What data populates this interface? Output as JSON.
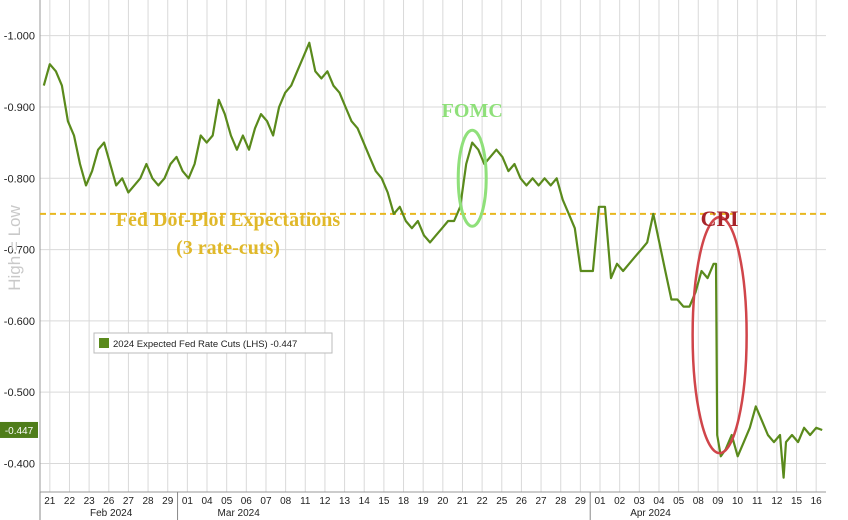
{
  "chart_data": {
    "type": "line",
    "title": "",
    "xlabel": "",
    "ylabel": "",
    "side_label": "High = Low",
    "ylim": [
      -0.36,
      -1.05
    ],
    "y_ticks": [
      "-1.000",
      "-0.900",
      "-0.800",
      "-0.700",
      "-0.600",
      "-0.500",
      "-0.400"
    ],
    "y_tick_values": [
      -1.0,
      -0.9,
      -0.8,
      -0.7,
      -0.6,
      -0.5,
      -0.4
    ],
    "x_ticks": [
      "21",
      "22",
      "23",
      "26",
      "27",
      "28",
      "29",
      "01",
      "04",
      "05",
      "06",
      "07",
      "08",
      "11",
      "12",
      "13",
      "14",
      "15",
      "18",
      "19",
      "20",
      "21",
      "22",
      "25",
      "26",
      "27",
      "28",
      "29",
      "01",
      "02",
      "03",
      "04",
      "05",
      "08",
      "09",
      "10",
      "11",
      "12",
      "15",
      "16"
    ],
    "months": [
      {
        "label": "Feb 2024",
        "tick_index": 0
      },
      {
        "label": "Mar 2024",
        "tick_index": 7
      },
      {
        "label": "Apr 2024",
        "tick_index": 28
      }
    ],
    "grid": true,
    "series": [
      {
        "name": "2024 Expected Fed Rate Cuts (LHS)",
        "last_value": "-0.447",
        "color": "#5a8a1c",
        "points": [
          [
            -0.5,
            -0.93
          ],
          [
            0,
            -0.96
          ],
          [
            0.5,
            -0.95
          ],
          [
            1,
            -0.93
          ],
          [
            1.5,
            -0.88
          ],
          [
            2,
            -0.86
          ],
          [
            2.5,
            -0.82
          ],
          [
            3,
            -0.79
          ],
          [
            3.5,
            -0.81
          ],
          [
            4,
            -0.84
          ],
          [
            4.5,
            -0.85
          ],
          [
            5,
            -0.82
          ],
          [
            5.5,
            -0.79
          ],
          [
            6,
            -0.8
          ],
          [
            6.5,
            -0.78
          ],
          [
            7,
            -0.79
          ],
          [
            7.5,
            -0.8
          ],
          [
            8,
            -0.82
          ],
          [
            8.5,
            -0.8
          ],
          [
            9,
            -0.79
          ],
          [
            9.5,
            -0.8
          ],
          [
            10,
            -0.82
          ],
          [
            10.5,
            -0.83
          ],
          [
            11,
            -0.81
          ],
          [
            11.5,
            -0.8
          ],
          [
            12,
            -0.82
          ],
          [
            12.5,
            -0.86
          ],
          [
            13,
            -0.85
          ],
          [
            13.5,
            -0.86
          ],
          [
            14,
            -0.91
          ],
          [
            14.5,
            -0.89
          ],
          [
            15,
            -0.86
          ],
          [
            15.5,
            -0.84
          ],
          [
            16,
            -0.86
          ],
          [
            16.5,
            -0.84
          ],
          [
            17,
            -0.87
          ],
          [
            17.5,
            -0.89
          ],
          [
            18,
            -0.88
          ],
          [
            18.5,
            -0.86
          ],
          [
            19,
            -0.9
          ],
          [
            19.5,
            -0.92
          ],
          [
            20,
            -0.93
          ],
          [
            20.5,
            -0.95
          ],
          [
            21,
            -0.97
          ],
          [
            21.5,
            -0.99
          ],
          [
            22,
            -0.95
          ],
          [
            22.5,
            -0.94
          ],
          [
            23,
            -0.95
          ],
          [
            23.5,
            -0.93
          ],
          [
            24,
            -0.92
          ],
          [
            24.5,
            -0.9
          ],
          [
            25,
            -0.88
          ],
          [
            25.5,
            -0.87
          ],
          [
            26,
            -0.85
          ],
          [
            26.5,
            -0.83
          ],
          [
            27,
            -0.81
          ],
          [
            27.5,
            -0.8
          ],
          [
            28,
            -0.78
          ],
          [
            28.5,
            -0.75
          ],
          [
            29,
            -0.76
          ],
          [
            29.5,
            -0.74
          ],
          [
            30,
            -0.73
          ],
          [
            30.5,
            -0.74
          ],
          [
            31,
            -0.72
          ],
          [
            31.5,
            -0.71
          ],
          [
            32,
            -0.72
          ],
          [
            32.5,
            -0.73
          ],
          [
            33,
            -0.74
          ],
          [
            33.5,
            -0.74
          ],
          [
            34,
            -0.76
          ],
          [
            34.5,
            -0.82
          ],
          [
            35,
            -0.85
          ],
          [
            35.5,
            -0.84
          ],
          [
            36,
            -0.82
          ],
          [
            36.5,
            -0.83
          ],
          [
            37,
            -0.84
          ],
          [
            37.5,
            -0.83
          ],
          [
            38,
            -0.81
          ],
          [
            38.5,
            -0.82
          ],
          [
            39,
            -0.8
          ],
          [
            39.5,
            -0.79
          ],
          [
            40,
            -0.8
          ],
          [
            40.5,
            -0.79
          ],
          [
            41,
            -0.8
          ],
          [
            41.5,
            -0.79
          ],
          [
            42,
            -0.8
          ],
          [
            42.5,
            -0.77
          ],
          [
            43,
            -0.75
          ],
          [
            43.5,
            -0.73
          ],
          [
            44,
            -0.67
          ],
          [
            44.5,
            -0.67
          ],
          [
            45,
            -0.67
          ],
          [
            45.5,
            -0.76
          ],
          [
            46,
            -0.76
          ],
          [
            46.5,
            -0.66
          ],
          [
            47,
            -0.68
          ],
          [
            47.5,
            -0.67
          ],
          [
            48,
            -0.68
          ],
          [
            48.5,
            -0.69
          ],
          [
            49,
            -0.7
          ],
          [
            49.5,
            -0.71
          ],
          [
            50,
            -0.75
          ],
          [
            50.5,
            -0.71
          ],
          [
            51,
            -0.67
          ],
          [
            51.5,
            -0.63
          ],
          [
            52,
            -0.63
          ],
          [
            52.5,
            -0.62
          ],
          [
            53,
            -0.62
          ],
          [
            53.5,
            -0.64
          ],
          [
            54,
            -0.67
          ],
          [
            54.5,
            -0.66
          ],
          [
            55,
            -0.68
          ],
          [
            55.2,
            -0.68
          ],
          [
            55.3,
            -0.44
          ],
          [
            55.6,
            -0.41
          ],
          [
            56,
            -0.42
          ],
          [
            56.5,
            -0.44
          ],
          [
            57,
            -0.41
          ],
          [
            57.5,
            -0.43
          ],
          [
            58,
            -0.45
          ],
          [
            58.5,
            -0.48
          ],
          [
            59,
            -0.46
          ],
          [
            59.5,
            -0.44
          ],
          [
            60,
            -0.43
          ],
          [
            60.5,
            -0.44
          ],
          [
            60.8,
            -0.38
          ],
          [
            61,
            -0.43
          ],
          [
            61.5,
            -0.44
          ],
          [
            62,
            -0.43
          ],
          [
            62.5,
            -0.45
          ],
          [
            63,
            -0.44
          ],
          [
            63.5,
            -0.45
          ],
          [
            64,
            -0.447
          ]
        ]
      }
    ],
    "reference_line": {
      "value": -0.75,
      "color": "#e8b820"
    },
    "annotations": [
      {
        "text": "Fed Dot-Plot Expectations",
        "color": "#e0b82a"
      },
      {
        "text": "(3 rate-cuts)",
        "color": "#e0b82a"
      },
      {
        "text": "FOMC",
        "color": "#8fe07a"
      },
      {
        "text": "CPI",
        "color": "#a8242a"
      }
    ],
    "legend": {
      "placement": "lower-left",
      "text": "2024 Expected Fed Rate Cuts (LHS)  -0.447"
    },
    "last_value_badge": "-0.447",
    "colors": {
      "line": "#5a8a1c",
      "badge": "#4f7d1a",
      "fomc_ring": "#8fe07a",
      "cpi_ring": "#d0454a",
      "dotplot": "#e8b820"
    }
  }
}
